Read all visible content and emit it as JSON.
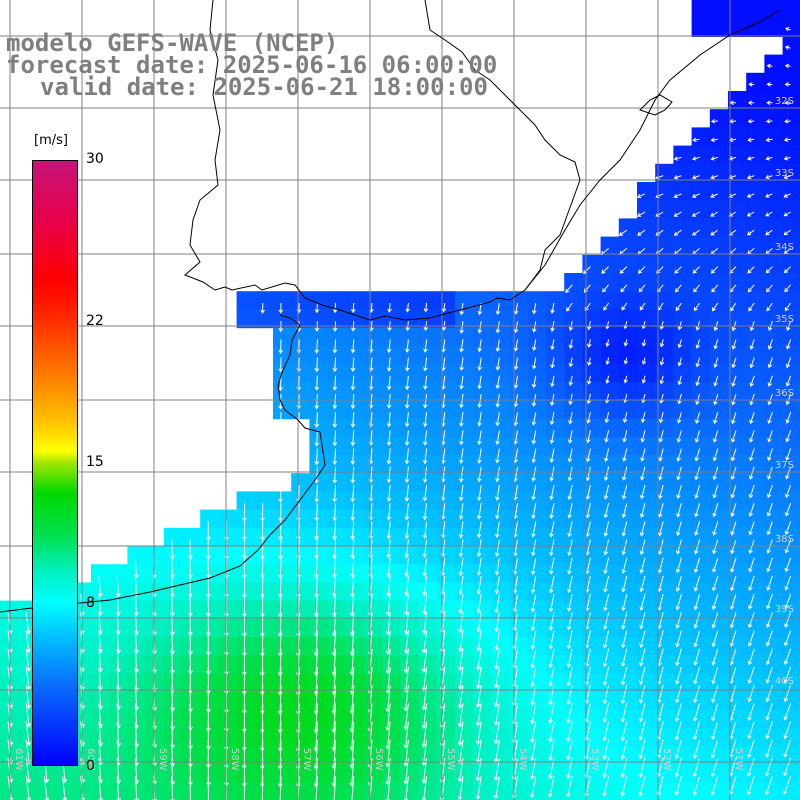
{
  "title": {
    "model": "modelo GEFS-WAVE (NCEP)",
    "forecast": "forecast date: 2025-06-16 06:00:00",
    "valid": "valid date: 2025-06-21 18:00:00"
  },
  "colorbar": {
    "units": "[m/s]",
    "ticks": [
      "30",
      "22",
      "15",
      "8",
      "0"
    ],
    "tick_values": [
      30,
      22,
      15,
      8,
      0
    ],
    "range": [
      0,
      30
    ]
  },
  "map": {
    "lat_labels": [
      "32S",
      "33S",
      "34S",
      "35S",
      "36S",
      "37S",
      "38S",
      "39S",
      "40S"
    ],
    "lon_labels": [
      "61W",
      "60W",
      "59W",
      "58W",
      "57W",
      "56W",
      "55W",
      "54W",
      "53W",
      "52W",
      "51W"
    ],
    "background_color": "#ffffff",
    "land_color": "#ffffff",
    "coast_color": "#000000",
    "grid_color": "#808080",
    "arrow_color": "#ffffff"
  }
}
